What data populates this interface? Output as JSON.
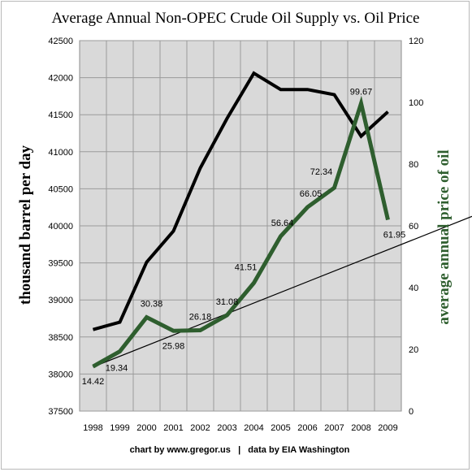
{
  "chart_data": {
    "type": "line",
    "title": "Average Annual Non-OPEC Crude Oil Supply vs. Oil Price",
    "ylabel": "thousand barrel per day",
    "y2label": "average annual price of oil",
    "credit": "chart by www.gregor.us   |   data by EIA Washington",
    "categories": [
      "1998",
      "1999",
      "2000",
      "2001",
      "2002",
      "2003",
      "2004",
      "2005",
      "2006",
      "2007",
      "2008",
      "2009"
    ],
    "ylim": [
      37500,
      42500
    ],
    "y_ticks": [
      37500,
      38000,
      38500,
      39000,
      39500,
      40000,
      40500,
      41000,
      41500,
      42000,
      42500
    ],
    "y2lim": [
      0,
      120
    ],
    "y2_ticks": [
      0,
      20,
      40,
      60,
      80,
      100,
      120
    ],
    "grid": true,
    "series": [
      {
        "axis": "left",
        "color": "#000000",
        "values": [
          38600,
          38700,
          39510,
          39930,
          40780,
          41450,
          42060,
          41840,
          41840,
          41770,
          41210,
          41540
        ]
      },
      {
        "axis": "right",
        "color": "#2e5e2e",
        "values": [
          14.42,
          19.34,
          30.38,
          25.98,
          26.18,
          31.08,
          41.51,
          56.64,
          66.05,
          72.34,
          99.67,
          61.95
        ],
        "labels": [
          "14.42",
          "19.34",
          "30.38",
          "25.98",
          "26.18",
          "31.08",
          "41.51",
          "56.64",
          "66.05",
          "72.34",
          "99.67",
          "61.95"
        ]
      }
    ],
    "trendline": {
      "axis": "right",
      "color": "#000000",
      "from": {
        "x": "1998",
        "y": 14.3
      },
      "slope_per_year": 3.45
    }
  }
}
